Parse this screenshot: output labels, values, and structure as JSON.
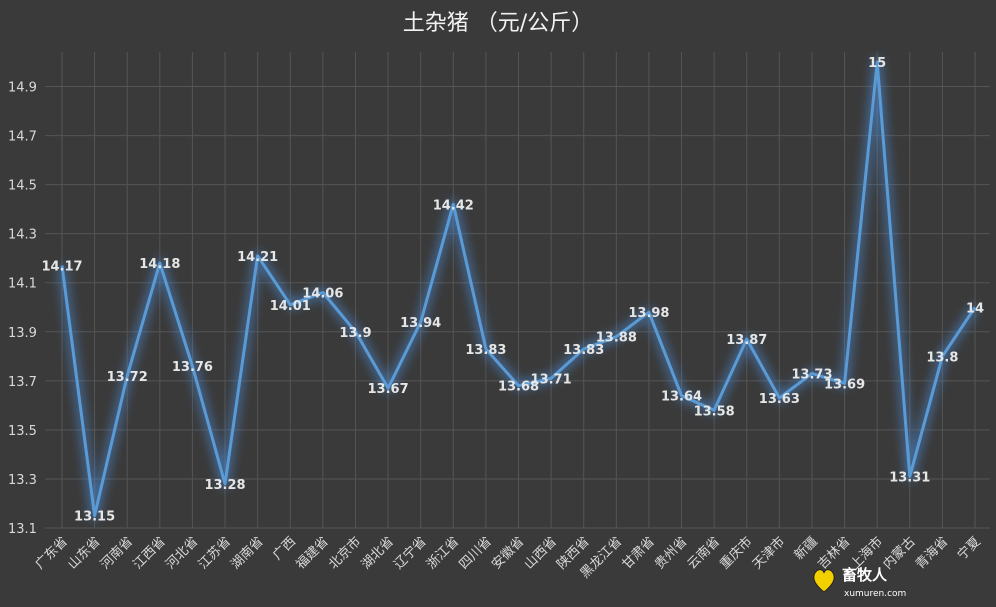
{
  "chart_data": {
    "type": "line",
    "title": "土杂猪   （元/公斤）",
    "xlabel": "",
    "ylabel": "",
    "ylim": [
      13.1,
      15.0
    ],
    "yticks": [
      13.1,
      13.3,
      13.5,
      13.7,
      13.9,
      14.1,
      14.3,
      14.5,
      14.7,
      14.9
    ],
    "grid": true,
    "legend": "none",
    "categories": [
      "广东省",
      "山东省",
      "河南省",
      "江西省",
      "河北省",
      "江苏省",
      "湖南省",
      "广西",
      "福建省",
      "北京市",
      "湖北省",
      "辽宁省",
      "浙江省",
      "四川省",
      "安徽省",
      "山西省",
      "陕西省",
      "黑龙江省",
      "甘肃省",
      "贵州省",
      "云南省",
      "重庆市",
      "天津市",
      "新疆",
      "吉林省",
      "上海市",
      "内蒙古",
      "青海省",
      "宁夏"
    ],
    "series": [
      {
        "values": [
          14.17,
          13.15,
          13.72,
          14.18,
          13.76,
          13.28,
          14.21,
          14.01,
          14.06,
          13.9,
          13.67,
          13.94,
          14.42,
          13.83,
          13.68,
          13.71,
          13.83,
          13.88,
          13.98,
          13.64,
          13.58,
          13.87,
          13.63,
          13.73,
          13.69,
          15,
          13.31,
          13.8,
          14
        ],
        "labels": [
          "14.17",
          "13.15",
          "13.72",
          "14.18",
          "13.76",
          "13.28",
          "14.21",
          "14.01",
          "14.06",
          "13.9",
          "13.67",
          "13.94",
          "14.42",
          "13.83",
          "13.68",
          "13.71",
          "13.83",
          "13.88",
          "13.98",
          "13.64",
          "13.58",
          "13.87",
          "13.63",
          "13.73",
          "13.69",
          "15",
          "13.31",
          "13.8",
          "14"
        ]
      }
    ],
    "colors": {
      "background": "#3a3a3a",
      "line": "#5b9bd5",
      "glow": "#4a8fe0",
      "grid": "#555555",
      "text": "#d9d9d9"
    }
  },
  "watermark": {
    "site_name": "畜牧人",
    "site_url": "xumuren.com"
  }
}
